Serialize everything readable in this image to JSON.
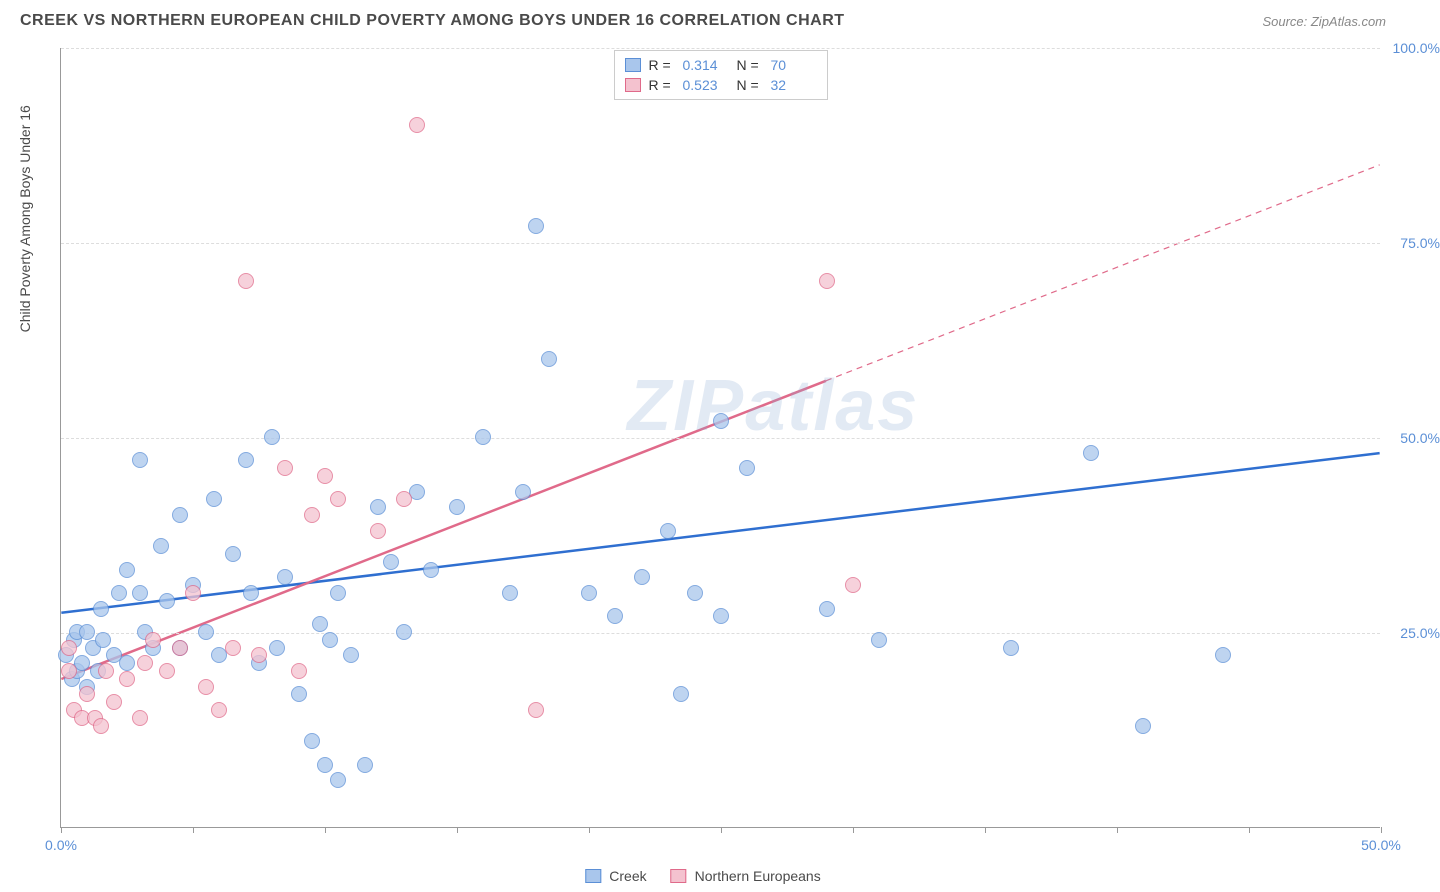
{
  "header": {
    "title": "CREEK VS NORTHERN EUROPEAN CHILD POVERTY AMONG BOYS UNDER 16 CORRELATION CHART",
    "source": "Source: ZipAtlas.com"
  },
  "watermark": "ZIPatlas",
  "chart": {
    "type": "scatter",
    "y_axis_title": "Child Poverty Among Boys Under 16",
    "xlim": [
      0,
      50
    ],
    "ylim": [
      0,
      100
    ],
    "x_ticks": [
      0,
      5,
      10,
      15,
      20,
      25,
      30,
      35,
      40,
      45,
      50
    ],
    "x_tick_labels": {
      "0": "0.0%",
      "50": "50.0%"
    },
    "y_gridlines": [
      25,
      50,
      75,
      100
    ],
    "y_tick_labels": {
      "25": "25.0%",
      "50": "50.0%",
      "75": "75.0%",
      "100": "100.0%"
    },
    "marker_radius": 8,
    "marker_opacity": 0.75,
    "background_color": "#ffffff",
    "grid_color": "#dddddd",
    "axis_color": "#999999",
    "tick_label_color": "#5b8fd6",
    "axis_title_fontsize": 14,
    "series": [
      {
        "name": "Creek",
        "fill_color": "#a9c6ec",
        "stroke_color": "#5b8fd6",
        "stats": {
          "R_label": "R =",
          "R": "0.314",
          "N_label": "N =",
          "N": "70"
        },
        "trend": {
          "solid_to_x": 50,
          "y_at_0": 27.5,
          "y_at_50": 48,
          "line_color": "#2f6fd0",
          "line_width": 2.5
        },
        "points": [
          [
            0.2,
            22
          ],
          [
            0.4,
            19
          ],
          [
            0.5,
            24
          ],
          [
            0.6,
            20
          ],
          [
            0.6,
            25
          ],
          [
            0.8,
            21
          ],
          [
            1.0,
            25
          ],
          [
            1.0,
            18
          ],
          [
            1.2,
            23
          ],
          [
            1.4,
            20
          ],
          [
            1.5,
            28
          ],
          [
            1.6,
            24
          ],
          [
            2.0,
            22
          ],
          [
            2.2,
            30
          ],
          [
            2.5,
            21
          ],
          [
            2.5,
            33
          ],
          [
            3.0,
            47
          ],
          [
            3.0,
            30
          ],
          [
            3.2,
            25
          ],
          [
            3.5,
            23
          ],
          [
            3.8,
            36
          ],
          [
            4.0,
            29
          ],
          [
            4.5,
            40
          ],
          [
            4.5,
            23
          ],
          [
            5.0,
            31
          ],
          [
            5.5,
            25
          ],
          [
            5.8,
            42
          ],
          [
            6.0,
            22
          ],
          [
            6.5,
            35
          ],
          [
            7.0,
            47
          ],
          [
            7.2,
            30
          ],
          [
            7.5,
            21
          ],
          [
            8.0,
            50
          ],
          [
            8.2,
            23
          ],
          [
            8.5,
            32
          ],
          [
            9.0,
            17
          ],
          [
            9.5,
            11
          ],
          [
            9.8,
            26
          ],
          [
            10.0,
            8
          ],
          [
            10.2,
            24
          ],
          [
            10.5,
            30
          ],
          [
            10.5,
            6
          ],
          [
            11.0,
            22
          ],
          [
            11.5,
            8
          ],
          [
            12.0,
            41
          ],
          [
            12.5,
            34
          ],
          [
            13.0,
            25
          ],
          [
            13.5,
            43
          ],
          [
            14.0,
            33
          ],
          [
            15.0,
            41
          ],
          [
            16.0,
            50
          ],
          [
            17.0,
            30
          ],
          [
            17.5,
            43
          ],
          [
            18.0,
            77
          ],
          [
            18.5,
            60
          ],
          [
            20.0,
            30
          ],
          [
            21.0,
            27
          ],
          [
            22.0,
            32
          ],
          [
            23.0,
            38
          ],
          [
            24.0,
            30
          ],
          [
            25.0,
            52
          ],
          [
            25.0,
            27
          ],
          [
            26.0,
            46
          ],
          [
            29.0,
            28
          ],
          [
            31.0,
            24
          ],
          [
            36.0,
            23
          ],
          [
            39.0,
            48
          ],
          [
            41.0,
            13
          ],
          [
            44.0,
            22
          ],
          [
            23.5,
            17
          ]
        ]
      },
      {
        "name": "Northern Europeans",
        "fill_color": "#f4c2cf",
        "stroke_color": "#e06a8a",
        "stats": {
          "R_label": "R =",
          "R": "0.523",
          "N_label": "N =",
          "N": "32"
        },
        "trend": {
          "solid_to_x": 29,
          "y_at_0": 19,
          "y_at_50": 85,
          "line_color": "#e06a8a",
          "line_width": 2.5
        },
        "points": [
          [
            0.3,
            20
          ],
          [
            0.3,
            23
          ],
          [
            0.5,
            15
          ],
          [
            0.8,
            14
          ],
          [
            1.0,
            17
          ],
          [
            1.3,
            14
          ],
          [
            1.5,
            13
          ],
          [
            1.7,
            20
          ],
          [
            2.0,
            16
          ],
          [
            2.5,
            19
          ],
          [
            3.0,
            14
          ],
          [
            3.2,
            21
          ],
          [
            3.5,
            24
          ],
          [
            4.0,
            20
          ],
          [
            4.5,
            23
          ],
          [
            5.0,
            30
          ],
          [
            5.5,
            18
          ],
          [
            6.0,
            15
          ],
          [
            6.5,
            23
          ],
          [
            7.0,
            70
          ],
          [
            7.5,
            22
          ],
          [
            8.5,
            46
          ],
          [
            9.0,
            20
          ],
          [
            9.5,
            40
          ],
          [
            10.0,
            45
          ],
          [
            10.5,
            42
          ],
          [
            12.0,
            38
          ],
          [
            13.0,
            42
          ],
          [
            13.5,
            90
          ],
          [
            18.0,
            15
          ],
          [
            29.0,
            70
          ],
          [
            30.0,
            31
          ]
        ]
      }
    ]
  },
  "bottom_legend": [
    {
      "label": "Creek",
      "fill": "#a9c6ec",
      "stroke": "#5b8fd6"
    },
    {
      "label": "Northern Europeans",
      "fill": "#f4c2cf",
      "stroke": "#e06a8a"
    }
  ]
}
